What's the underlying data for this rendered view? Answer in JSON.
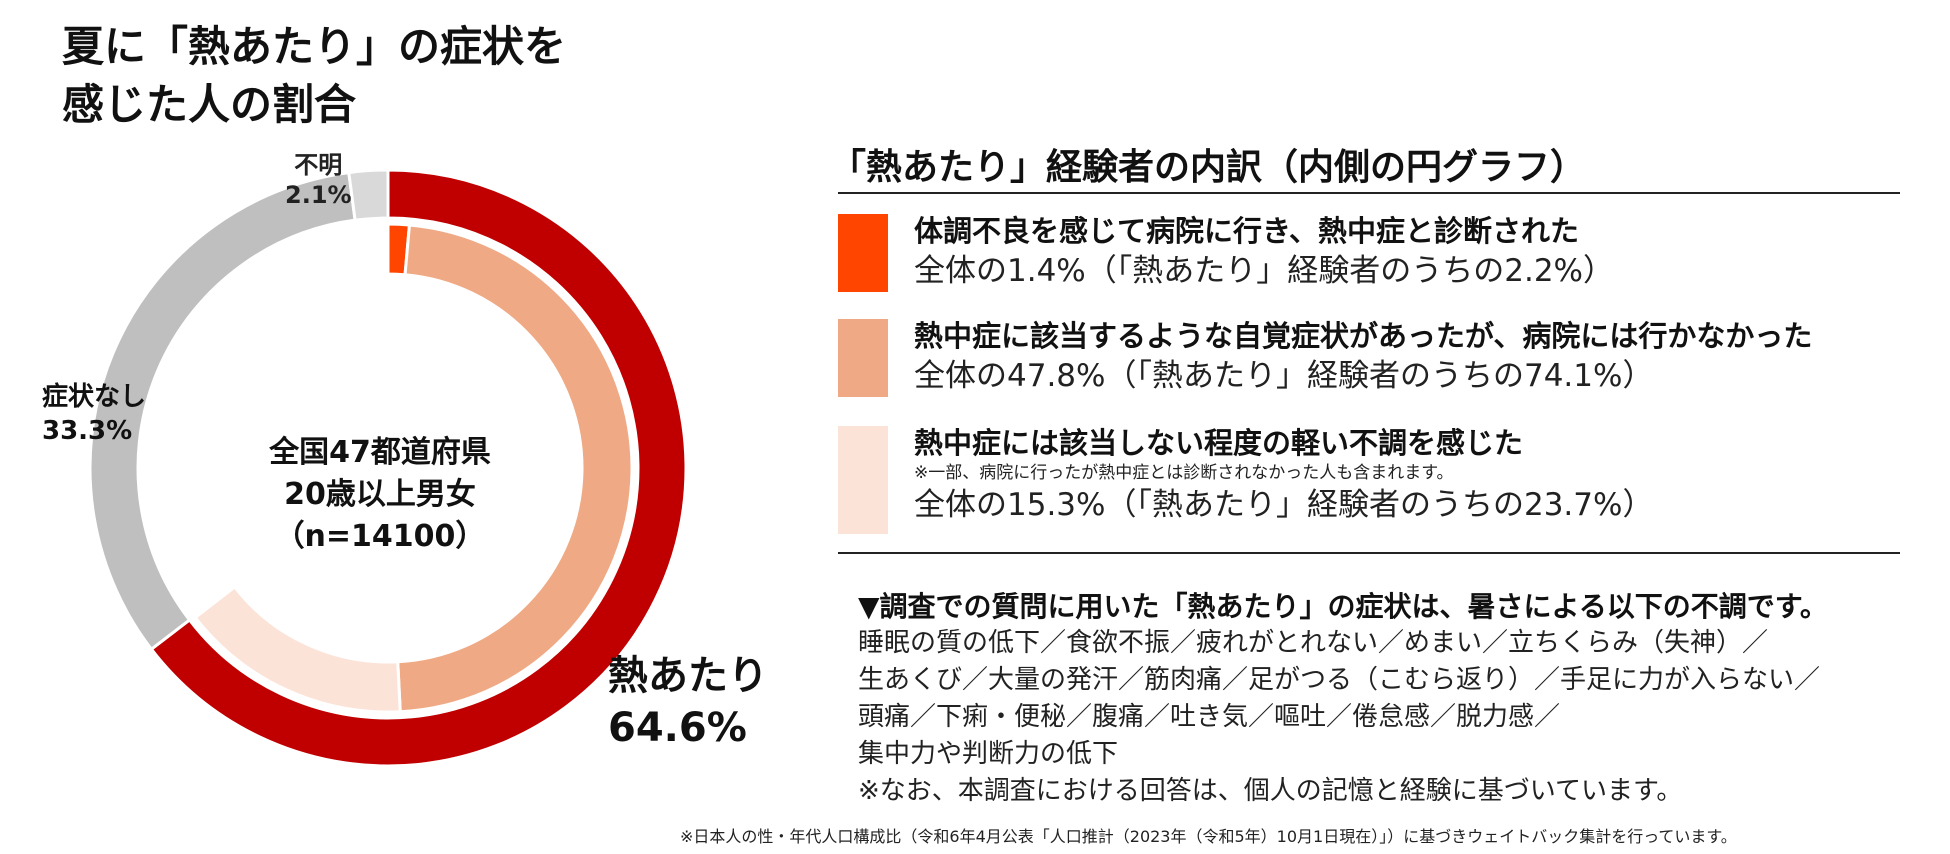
{
  "title": {
    "line1": "夏に「熱あたり」の症状を",
    "line2": "感じた人の割合"
  },
  "center_label": {
    "line1": "全国47都道府県",
    "line2": "20歳以上男女",
    "line3": "（n=14100）"
  },
  "outer_labels": {
    "unknown_name": "不明",
    "unknown_value": "2.1%",
    "none_name": "症状なし",
    "none_value": "33.3%",
    "heat_name": "熱あたり",
    "heat_value": "64.6%"
  },
  "legend": {
    "title": "「熱あたり」経験者の内訳（内側の円グラフ）",
    "items": [
      {
        "label": "体調不良を感じて病院に行き、熱中症と診断された",
        "note": "",
        "value_text": "全体の1.4%（「熱あたり」経験者のうちの2.2%）",
        "color": "#FF4500"
      },
      {
        "label": "熱中症に該当するような自覚症状があったが、病院には行かなかった",
        "note": "",
        "value_text": "全体の47.8%（「熱あたり」経験者のうちの74.1%）",
        "color": "#EFAA85"
      },
      {
        "label": "熱中症には該当しない程度の軽い不調を感じた",
        "note": "※一部、病院に行ったが熱中症とは診断されなかった人も含まれます。",
        "value_text": "全体の15.3%（「熱あたり」経験者のうちの23.7%）",
        "color": "#FCE3D8"
      }
    ]
  },
  "notes": {
    "heading": "▼調査での質問に用いた「熱あたり」の症状は、暑さによる以下の不調です。",
    "lines": [
      "睡眠の質の低下／食欲不振／疲れがとれない／めまい／立ちくらみ（失神）／",
      "生あくび／大量の発汗／筋肉痛／足がつる（こむら返り）／手足に力が入らない／",
      "頭痛／下痢・便秘／腹痛／吐き気／嘔吐／倦怠感／脱力感／",
      "集中力や判断力の低下",
      "※なお、本調査における回答は、個人の記憶と経験に基づいています。"
    ]
  },
  "footnote": "※日本人の性・年代人口構成比（令和6年4月公表「人口推計（2023年（令和5年）10月1日現在）」）に基づきウェイトバック集計を行っています。",
  "chart_data": {
    "type": "pie",
    "subtype": "nested-donut",
    "outer_ring": {
      "categories": [
        "熱あたり",
        "症状なし",
        "不明"
      ],
      "values": [
        64.6,
        33.3,
        2.1
      ],
      "colors": [
        "#C00000",
        "#BFBFBF",
        "#D9D9D9"
      ]
    },
    "inner_ring": {
      "categories": [
        "体調不良を感じて病院に行き、熱中症と診断された",
        "熱中症に該当するような自覚症状があったが、病院には行かなかった",
        "熱中症には該当しない程度の軽い不調を感じた"
      ],
      "values": [
        1.4,
        47.8,
        15.3
      ],
      "colors": [
        "#FF4500",
        "#EFAA85",
        "#FCE3D8"
      ]
    }
  }
}
